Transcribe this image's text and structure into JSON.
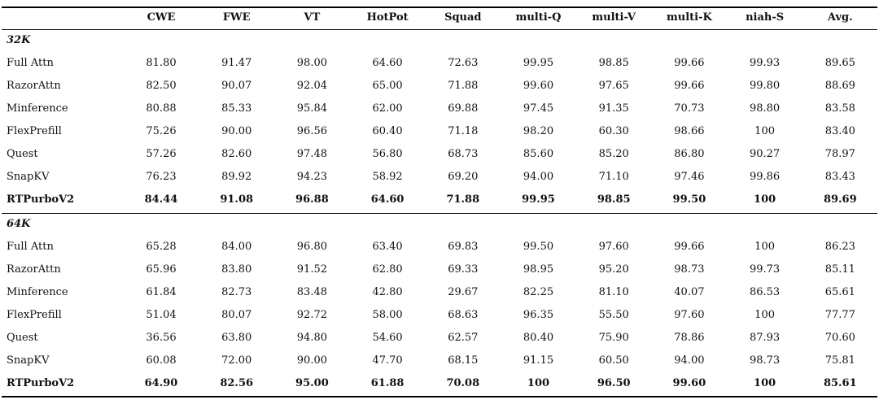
{
  "table": {
    "columns": [
      "CWE",
      "FWE",
      "VT",
      "HotPot",
      "Squad",
      "multi-Q",
      "multi-V",
      "multi-K",
      "niah-S",
      "Avg."
    ],
    "sections": [
      {
        "label": "32K",
        "rows": [
          {
            "method": "Full Attn",
            "values": [
              "81.80",
              "91.47",
              "98.00",
              "64.60",
              "72.63",
              "99.95",
              "98.85",
              "99.66",
              "99.93",
              "89.65"
            ]
          },
          {
            "method": "RazorAttn",
            "values": [
              "82.50",
              "90.07",
              "92.04",
              "65.00",
              "71.88",
              "99.60",
              "97.65",
              "99.66",
              "99.80",
              "88.69"
            ]
          },
          {
            "method": "Minference",
            "values": [
              "80.88",
              "85.33",
              "95.84",
              "62.00",
              "69.88",
              "97.45",
              "91.35",
              "70.73",
              "98.80",
              "83.58"
            ]
          },
          {
            "method": "FlexPrefill",
            "values": [
              "75.26",
              "90.00",
              "96.56",
              "60.40",
              "71.18",
              "98.20",
              "60.30",
              "98.66",
              "100",
              "83.40"
            ]
          },
          {
            "method": "Quest",
            "values": [
              "57.26",
              "82.60",
              "97.48",
              "56.80",
              "68.73",
              "85.60",
              "85.20",
              "86.80",
              "90.27",
              "78.97"
            ]
          },
          {
            "method": "SnapKV",
            "values": [
              "76.23",
              "89.92",
              "94.23",
              "58.92",
              "69.20",
              "94.00",
              "71.10",
              "97.46",
              "99.86",
              "83.43"
            ]
          },
          {
            "method": "RTPurboV2",
            "values": [
              "84.44",
              "91.08",
              "96.88",
              "64.60",
              "71.88",
              "99.95",
              "98.85",
              "99.50",
              "100",
              "89.69"
            ]
          }
        ]
      },
      {
        "label": "64K",
        "rows": [
          {
            "method": "Full Attn",
            "values": [
              "65.28",
              "84.00",
              "96.80",
              "63.40",
              "69.83",
              "99.50",
              "97.60",
              "99.66",
              "100",
              "86.23"
            ]
          },
          {
            "method": "RazorAttn",
            "values": [
              "65.96",
              "83.80",
              "91.52",
              "62.80",
              "69.33",
              "98.95",
              "95.20",
              "98.73",
              "99.73",
              "85.11"
            ]
          },
          {
            "method": "Minference",
            "values": [
              "61.84",
              "82.73",
              "83.48",
              "42.80",
              "29.67",
              "82.25",
              "81.10",
              "40.07",
              "86.53",
              "65.61"
            ]
          },
          {
            "method": "FlexPrefill",
            "values": [
              "51.04",
              "80.07",
              "92.72",
              "58.00",
              "68.63",
              "96.35",
              "55.50",
              "97.60",
              "100",
              "77.77"
            ]
          },
          {
            "method": "Quest",
            "values": [
              "36.56",
              "63.80",
              "94.80",
              "54.60",
              "62.57",
              "80.40",
              "75.90",
              "78.86",
              "87.93",
              "70.60"
            ]
          },
          {
            "method": "SnapKV",
            "values": [
              "60.08",
              "72.00",
              "90.00",
              "47.70",
              "68.15",
              "91.15",
              "60.50",
              "94.00",
              "98.73",
              "75.81"
            ]
          },
          {
            "method": "RTPurboV2",
            "values": [
              "64.90",
              "82.56",
              "95.00",
              "61.88",
              "70.08",
              "100",
              "96.50",
              "99.60",
              "100",
              "85.61"
            ]
          }
        ]
      }
    ]
  }
}
